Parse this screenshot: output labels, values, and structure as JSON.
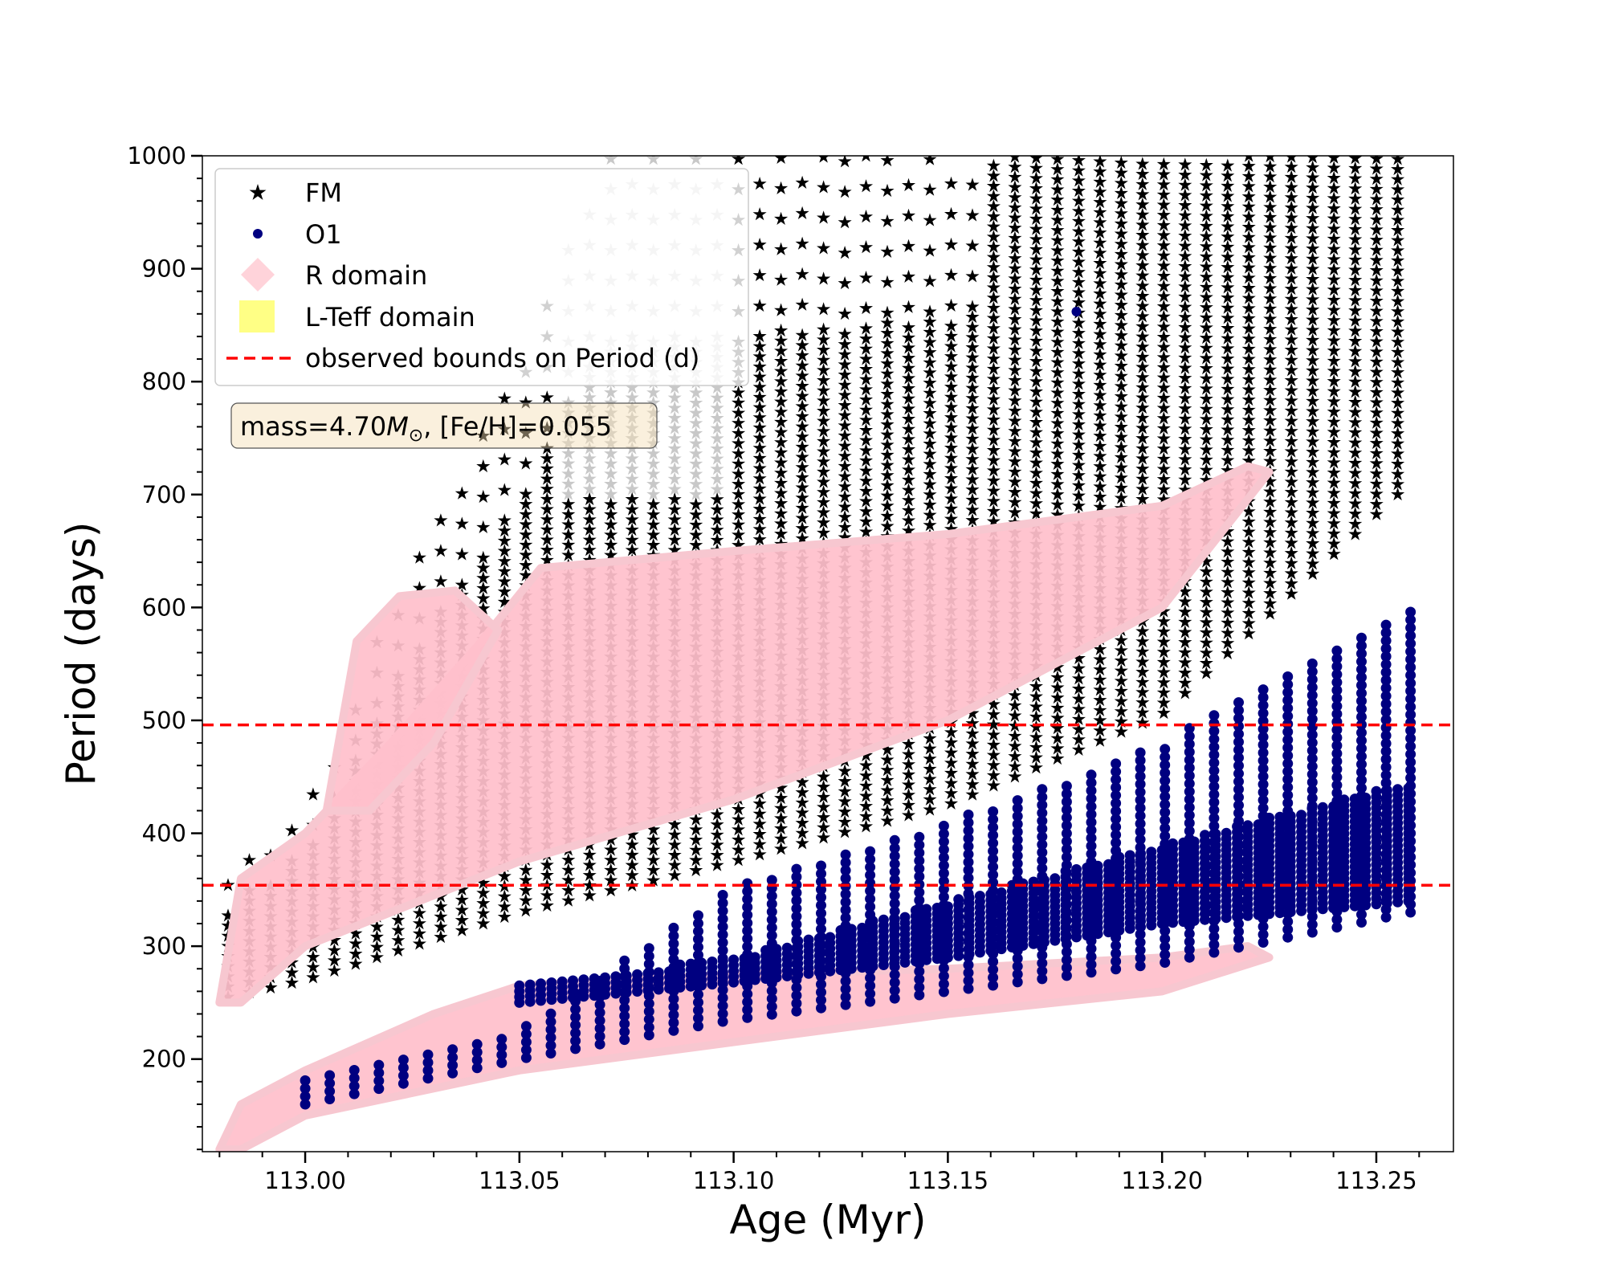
{
  "chart_data": {
    "type": "scatter",
    "xlabel": "Age (Myr)",
    "ylabel": "Period (days)",
    "xlim": [
      112.976,
      113.268
    ],
    "ylim": [
      118,
      1000
    ],
    "xticks": [
      113.0,
      113.05,
      113.1,
      113.15,
      113.2,
      113.25
    ],
    "xtick_labels": [
      "113.00",
      "113.05",
      "113.10",
      "113.15",
      "113.20",
      "113.25"
    ],
    "yticks": [
      200,
      300,
      400,
      500,
      600,
      700,
      800,
      900,
      1000
    ],
    "ytick_labels": [
      "200",
      "300",
      "400",
      "500",
      "600",
      "700",
      "800",
      "900",
      "1000"
    ],
    "grid": false,
    "legend": {
      "placement": "top-left",
      "entries": [
        {
          "label": "FM",
          "marker": "star",
          "color": "#000000"
        },
        {
          "label": "O1",
          "marker": "circle",
          "color": "#000080"
        },
        {
          "label": "R domain",
          "marker": "diamond",
          "color": "#ffc0cb"
        },
        {
          "label": "L-Teff domain",
          "marker": "square",
          "color": "#ffff66"
        },
        {
          "label": "observed bounds on Period (d)",
          "marker": "dashed-line",
          "color": "#ff0000"
        }
      ]
    },
    "annotation": {
      "prefix": "mass=4.70",
      "symbol_italic": "M",
      "symbol_sub": "⊙",
      "suffix": ", [Fe/H]=0.055"
    },
    "reference_lines": [
      {
        "orientation": "horizontal",
        "y": 496,
        "style": "dashed",
        "color": "#ff0000"
      },
      {
        "orientation": "horizontal",
        "y": 354,
        "style": "dashed",
        "color": "#ff0000"
      }
    ],
    "series": [
      {
        "name": "FM",
        "marker": "star",
        "color": "#000000",
        "band": {
          "x_start": 112.982,
          "x_end": 113.255,
          "lower": [
            [
              112.982,
              255
            ],
            [
              113.0,
              270
            ],
            [
              113.05,
              330
            ],
            [
              113.1,
              375
            ],
            [
              113.15,
              425
            ],
            [
              113.2,
              505
            ],
            [
              113.255,
              700
            ]
          ],
          "upper": [
            [
              112.982,
              360
            ],
            [
              113.0,
              420
            ],
            [
              113.02,
              600
            ],
            [
              113.05,
              820
            ],
            [
              113.07,
              1000
            ],
            [
              113.255,
              1000
            ]
          ]
        }
      },
      {
        "name": "O1",
        "marker": "circle",
        "color": "#000080",
        "band": {
          "x_start": 113.0,
          "x_end": 113.258,
          "lower": [
            [
              113.0,
              160
            ],
            [
              113.05,
              200
            ],
            [
              113.1,
              235
            ],
            [
              113.15,
              260
            ],
            [
              113.2,
              285
            ],
            [
              113.258,
              330
            ]
          ],
          "upper": [
            [
              113.0,
              185
            ],
            [
              113.05,
              225
            ],
            [
              113.1,
              355
            ],
            [
              113.15,
              410
            ],
            [
              113.2,
              480
            ],
            [
              113.258,
              598
            ]
          ]
        },
        "dense_region": {
          "lower": [
            [
              113.05,
              250
            ],
            [
              113.1,
              268
            ],
            [
              113.15,
              290
            ],
            [
              113.2,
              320
            ],
            [
              113.258,
              340
            ]
          ],
          "upper": [
            [
              113.05,
              265
            ],
            [
              113.1,
              290
            ],
            [
              113.15,
              340
            ],
            [
              113.2,
              390
            ],
            [
              113.258,
              445
            ]
          ]
        },
        "outlier": [
          113.18,
          862
        ]
      }
    ],
    "domains": [
      {
        "name": "R domain",
        "color": "#ffc0cb",
        "regions": [
          {
            "polygon": [
              [
                112.98,
                250
              ],
              [
                112.985,
                360
              ],
              [
                113.0,
                400
              ],
              [
                113.02,
                480
              ],
              [
                113.04,
                565
              ],
              [
                113.055,
                635
              ],
              [
                113.1,
                650
              ],
              [
                113.15,
                665
              ],
              [
                113.18,
                680
              ],
              [
                113.2,
                690
              ],
              [
                113.22,
                725
              ],
              [
                113.225,
                720
              ],
              [
                113.2,
                600
              ],
              [
                113.15,
                500
              ],
              [
                113.1,
                430
              ],
              [
                113.05,
                375
              ],
              [
                113.0,
                300
              ],
              [
                112.985,
                250
              ]
            ]
          },
          {
            "polygon": [
              [
                112.98,
                120
              ],
              [
                112.985,
                160
              ],
              [
                113.0,
                190
              ],
              [
                113.03,
                240
              ],
              [
                113.05,
                265
              ],
              [
                113.1,
                275
              ],
              [
                113.15,
                280
              ],
              [
                113.2,
                290
              ],
              [
                113.22,
                300
              ],
              [
                113.225,
                290
              ],
              [
                113.2,
                260
              ],
              [
                113.15,
                240
              ],
              [
                113.1,
                215
              ],
              [
                113.05,
                190
              ],
              [
                113.0,
                150
              ],
              [
                112.985,
                120
              ]
            ]
          },
          {
            "polygon": [
              [
                113.005,
                420
              ],
              [
                113.012,
                570
              ],
              [
                113.022,
                610
              ],
              [
                113.035,
                615
              ],
              [
                113.045,
                580
              ],
              [
                113.03,
                480
              ],
              [
                113.015,
                420
              ]
            ]
          }
        ]
      }
    ]
  }
}
